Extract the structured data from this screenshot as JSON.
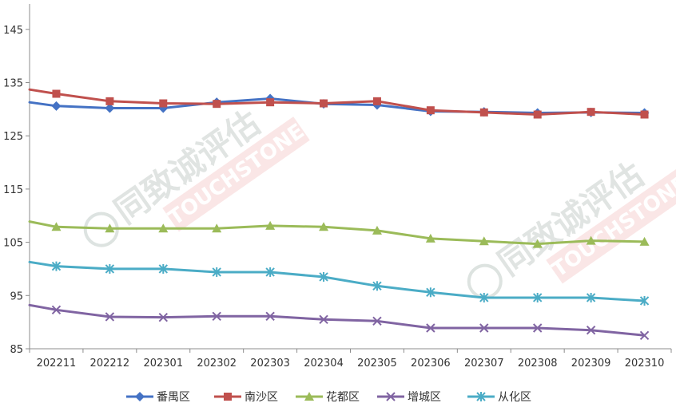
{
  "chart_data": {
    "type": "line",
    "title": "",
    "xlabel": "",
    "ylabel": "",
    "categories": [
      "202211",
      "202212",
      "202301",
      "202302",
      "202303",
      "202304",
      "202305",
      "202306",
      "202307",
      "202308",
      "202309",
      "202310"
    ],
    "ylim": [
      85,
      150
    ],
    "yticks": [
      85,
      95,
      105,
      115,
      125,
      135,
      145
    ],
    "grid": false,
    "legend_position": "bottom",
    "series": [
      {
        "name": "番禺区",
        "color": "#4472c4",
        "marker": "diamond",
        "start": 131.3,
        "values": [
          130.6,
          130.2,
          130.2,
          131.3,
          132.0,
          131.0,
          130.8,
          129.6,
          129.5,
          129.3,
          129.4,
          129.3
        ]
      },
      {
        "name": "南沙区",
        "color": "#c0504d",
        "marker": "square",
        "start": 133.7,
        "values": [
          132.9,
          131.5,
          131.1,
          131.0,
          131.3,
          131.1,
          131.5,
          129.8,
          129.4,
          129.0,
          129.5,
          129.0
        ]
      },
      {
        "name": "花都区",
        "color": "#9bbb59",
        "marker": "triangle",
        "start": 108.9,
        "values": [
          107.9,
          107.6,
          107.6,
          107.6,
          108.1,
          107.9,
          107.2,
          105.7,
          105.2,
          104.7,
          105.3,
          105.1
        ]
      },
      {
        "name": "增城区",
        "color": "#8064a2",
        "marker": "x",
        "start": 93.2,
        "values": [
          92.3,
          91.0,
          90.9,
          91.1,
          91.1,
          90.5,
          90.2,
          88.9,
          88.9,
          88.9,
          88.5,
          87.5
        ]
      },
      {
        "name": "从化区",
        "color": "#4bacc6",
        "marker": "star",
        "start": 101.3,
        "values": [
          100.5,
          100.0,
          100.0,
          99.4,
          99.4,
          98.5,
          96.8,
          95.6,
          94.6,
          94.6,
          94.6,
          94.0
        ]
      }
    ]
  },
  "watermark": {
    "brand_cn": "同致诚评估",
    "brand_en": "TOUCHSTONE"
  }
}
